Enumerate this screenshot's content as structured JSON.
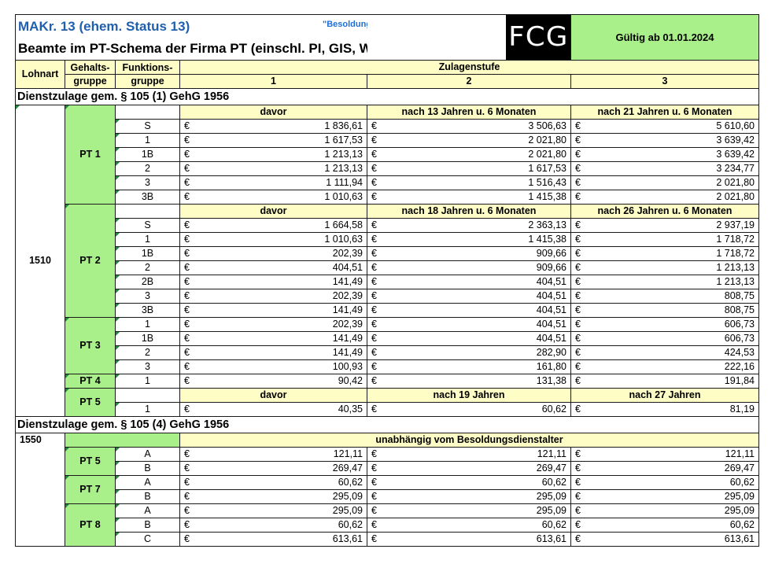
{
  "header": {
    "title": "MAKr. 13 (ehem. Status 13)",
    "besoldung": "\"Besoldung neu\"",
    "logo_text": "FCG",
    "valid": "Gültig ab 01.01.2024",
    "subtitle": "Beamte im PT-Schema der Firma PT (einschl. PI, GIS, WL)"
  },
  "columns": {
    "lohnart": "Lohnart",
    "gehalt_1": "Gehalts-",
    "gehalt_2": "gruppe",
    "funktion_1": "Funktions-",
    "funktion_2": "gruppe",
    "zulagenstufe": "Zulagenstufe",
    "s1": "1",
    "s2": "2",
    "s3": "3"
  },
  "currency": "€",
  "section1": {
    "title": "Dienstzulage gem. § 105 (1) GehG 1956",
    "lohnart": "1510",
    "groups": [
      {
        "name": "PT 1",
        "h1": "davor",
        "h2": "nach 13 Jahren u. 6 Monaten",
        "h3": "nach 21 Jahren u. 6 Monaten",
        "rows": [
          {
            "f": "S",
            "v1": "1 836,61",
            "v2": "3 506,63",
            "v3": "5 610,60"
          },
          {
            "f": "1",
            "v1": "1 617,53",
            "v2": "2 021,80",
            "v3": "3 639,42"
          },
          {
            "f": "1B",
            "v1": "1 213,13",
            "v2": "2 021,80",
            "v3": "3 639,42"
          },
          {
            "f": "2",
            "v1": "1 213,13",
            "v2": "1 617,53",
            "v3": "3 234,77"
          },
          {
            "f": "3",
            "v1": "1 111,94",
            "v2": "1 516,43",
            "v3": "2 021,80"
          },
          {
            "f": "3B",
            "v1": "1 010,63",
            "v2": "1 415,38",
            "v3": "2 021,80"
          }
        ]
      },
      {
        "name": "PT 2",
        "h1": "davor",
        "h2": "nach 18 Jahren u. 6 Monaten",
        "h3": "nach 26 Jahren u. 6 Monaten",
        "rows": [
          {
            "f": "S",
            "v1": "1 664,58",
            "v2": "2 363,13",
            "v3": "2 937,19"
          },
          {
            "f": "1",
            "v1": "1 010,63",
            "v2": "1 415,38",
            "v3": "1 718,72"
          },
          {
            "f": "1B",
            "v1": "202,39",
            "v2": "909,66",
            "v3": "1 718,72"
          },
          {
            "f": "2",
            "v1": "404,51",
            "v2": "909,66",
            "v3": "1 213,13"
          },
          {
            "f": "2B",
            "v1": "141,49",
            "v2": "404,51",
            "v3": "1 213,13"
          },
          {
            "f": "3",
            "v1": "202,39",
            "v2": "404,51",
            "v3": "808,75"
          },
          {
            "f": "3B",
            "v1": "141,49",
            "v2": "404,51",
            "v3": "808,75"
          }
        ]
      },
      {
        "name": "PT 3",
        "rows": [
          {
            "f": "1",
            "v1": "202,39",
            "v2": "404,51",
            "v3": "606,73"
          },
          {
            "f": "1B",
            "v1": "141,49",
            "v2": "404,51",
            "v3": "606,73"
          },
          {
            "f": "2",
            "v1": "141,49",
            "v2": "282,90",
            "v3": "424,53"
          },
          {
            "f": "3",
            "v1": "100,93",
            "v2": "161,80",
            "v3": "222,16"
          }
        ]
      },
      {
        "name": "PT 4",
        "rows": [
          {
            "f": "1",
            "v1": "90,42",
            "v2": "131,38",
            "v3": "191,84"
          }
        ]
      },
      {
        "name": "PT 5",
        "h1": "davor",
        "h2": "nach 19 Jahren",
        "h3": "nach 27 Jahren",
        "rows": [
          {
            "f": "1",
            "v1": "40,35",
            "v2": "60,62",
            "v3": "81,19"
          }
        ]
      }
    ]
  },
  "section2": {
    "title": "Dienstzulage gem. § 105 (4) GehG 1956",
    "lohnart": "1550",
    "header": "unabhängig vom Besoldungsdienstalter",
    "groups": [
      {
        "name": "PT 5",
        "rows": [
          {
            "f": "A",
            "v1": "121,11",
            "v2": "121,11",
            "v3": "121,11"
          },
          {
            "f": "B",
            "v1": "269,47",
            "v2": "269,47",
            "v3": "269,47"
          }
        ]
      },
      {
        "name": "PT 7",
        "rows": [
          {
            "f": "A",
            "v1": "60,62",
            "v2": "60,62",
            "v3": "60,62"
          },
          {
            "f": "B",
            "v1": "295,09",
            "v2": "295,09",
            "v3": "295,09"
          }
        ]
      },
      {
        "name": "PT 8",
        "rows": [
          {
            "f": "A",
            "v1": "295,09",
            "v2": "295,09",
            "v3": "295,09"
          },
          {
            "f": "B",
            "v1": "60,62",
            "v2": "60,62",
            "v3": "60,62"
          },
          {
            "f": "C",
            "v1": "613,61",
            "v2": "613,61",
            "v3": "613,61"
          }
        ]
      }
    ]
  }
}
